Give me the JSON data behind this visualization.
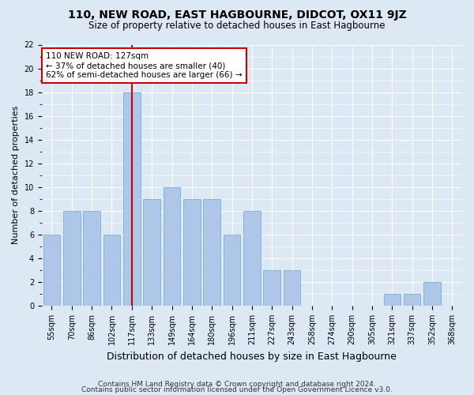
{
  "title": "110, NEW ROAD, EAST HAGBOURNE, DIDCOT, OX11 9JZ",
  "subtitle": "Size of property relative to detached houses in East Hagbourne",
  "xlabel": "Distribution of detached houses by size in East Hagbourne",
  "ylabel": "Number of detached properties",
  "categories": [
    "55sqm",
    "70sqm",
    "86sqm",
    "102sqm",
    "117sqm",
    "133sqm",
    "149sqm",
    "164sqm",
    "180sqm",
    "196sqm",
    "211sqm",
    "227sqm",
    "243sqm",
    "258sqm",
    "274sqm",
    "290sqm",
    "305sqm",
    "321sqm",
    "337sqm",
    "352sqm",
    "368sqm"
  ],
  "values": [
    6,
    8,
    8,
    6,
    18,
    9,
    10,
    9,
    9,
    6,
    8,
    3,
    3,
    0,
    0,
    0,
    0,
    1,
    1,
    2,
    0
  ],
  "bar_color": "#aec6e8",
  "bar_edge_color": "#7aafd4",
  "highlight_index": 4,
  "highlight_line_color": "#cc0000",
  "annotation_line1": "110 NEW ROAD: 127sqm",
  "annotation_line2": "← 37% of detached houses are smaller (40)",
  "annotation_line3": "62% of semi-detached houses are larger (66) →",
  "annotation_box_color": "#ffffff",
  "annotation_box_edge": "#cc0000",
  "ylim": [
    0,
    22
  ],
  "yticks": [
    0,
    2,
    4,
    6,
    8,
    10,
    12,
    14,
    16,
    18,
    20,
    22
  ],
  "footer_line1": "Contains HM Land Registry data © Crown copyright and database right 2024.",
  "footer_line2": "Contains public sector information licensed under the Open Government Licence v3.0.",
  "background_color": "#dde8f5",
  "plot_bg_color": "#dde8f5",
  "title_fontsize": 10,
  "subtitle_fontsize": 8.5,
  "xlabel_fontsize": 9,
  "ylabel_fontsize": 8,
  "tick_fontsize": 7,
  "annotation_fontsize": 7.5,
  "footer_fontsize": 6.5
}
